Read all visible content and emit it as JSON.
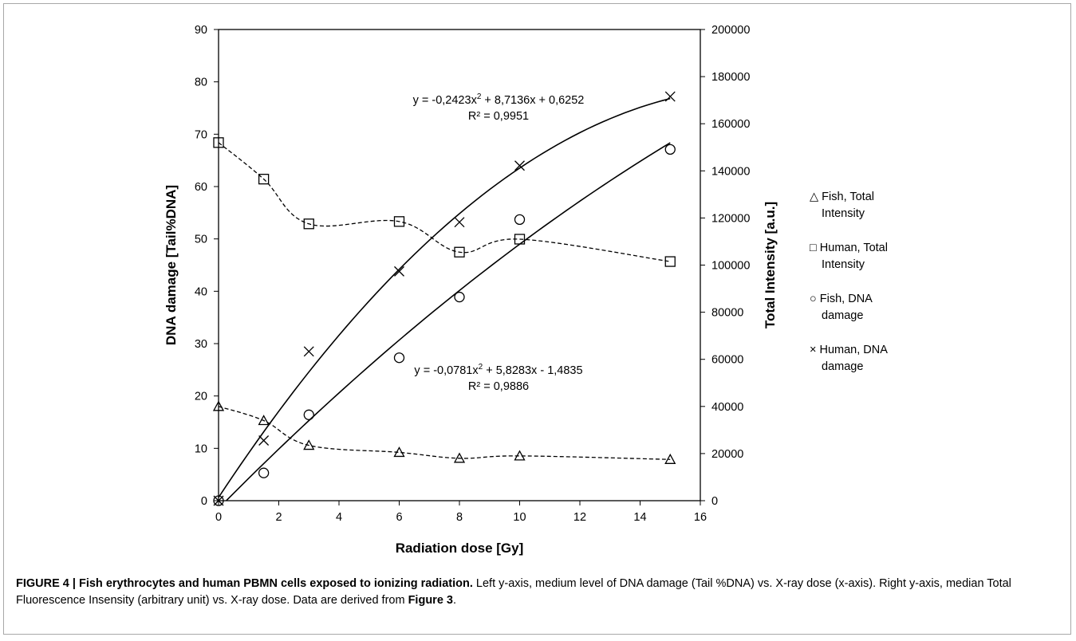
{
  "chart_data": {
    "type": "scatter",
    "xlabel": "Radiation dose [Gy]",
    "ylabel_left": "DNA damage [Tail%DNA]",
    "ylabel_right": "Total Intensity [a.u.]",
    "xlim": [
      0,
      16
    ],
    "ylim_left": [
      0,
      90
    ],
    "ylim_right": [
      0,
      200000
    ],
    "x_ticks": [
      "0",
      "2",
      "4",
      "6",
      "8",
      "10",
      "12",
      "14",
      "16"
    ],
    "y_left_ticks": [
      "0",
      "10",
      "20",
      "30",
      "40",
      "50",
      "60",
      "70",
      "80",
      "90"
    ],
    "y_right_ticks": [
      "0",
      "20000",
      "40000",
      "60000",
      "80000",
      "100000",
      "120000",
      "140000",
      "160000",
      "180000",
      "200000"
    ],
    "grid": false,
    "legend_position": "right",
    "series": [
      {
        "name": "Fish, Total Intensity",
        "legend": [
          "△ Fish, Total",
          "Intensity"
        ],
        "marker": "triangle",
        "axis": "right",
        "trend": "dashed",
        "x": [
          0,
          1.5,
          3,
          6,
          8,
          10,
          15
        ],
        "y": [
          40000,
          34000,
          23500,
          20500,
          18000,
          19000,
          17500
        ]
      },
      {
        "name": "Human, Total Intensity",
        "legend": [
          "□ Human, Total",
          "Intensity"
        ],
        "marker": "square",
        "axis": "right",
        "trend": "dashed",
        "x": [
          0,
          1.5,
          3,
          6,
          8,
          10,
          15
        ],
        "y": [
          152000,
          136500,
          117500,
          118500,
          105500,
          111000,
          101500
        ]
      },
      {
        "name": "Fish, DNA damage",
        "legend": [
          "○ Fish, DNA",
          "damage"
        ],
        "marker": "circle",
        "axis": "left",
        "trend": "solid",
        "x": [
          0,
          1.5,
          3,
          6,
          8,
          10,
          15
        ],
        "y": [
          0,
          5.3,
          16.4,
          27.3,
          38.9,
          53.7,
          67.1
        ]
      },
      {
        "name": "Human, DNA damage",
        "legend": [
          "× Human, DNA",
          "damage"
        ],
        "marker": "cross",
        "axis": "left",
        "trend": "solid",
        "x": [
          0,
          1.5,
          3,
          6,
          8,
          10,
          15
        ],
        "y": [
          0,
          11.5,
          28.5,
          43.8,
          53.2,
          64.0,
          77.2
        ]
      }
    ],
    "annotations": [
      {
        "line1_pre": "y = -0,2423x",
        "line1_post": " + 8,7136x + 0,6252",
        "line2": "R² = 0,9951",
        "coef": [
          -0.2423,
          8.7136,
          0.6252
        ]
      },
      {
        "line1_pre": "y = -0,0781x",
        "line1_post": " + 5,8283x - 1,4835",
        "line2": "R² = 0,9886",
        "coef": [
          -0.0781,
          5.8283,
          -1.4835
        ]
      }
    ]
  },
  "caption": {
    "bold": "FIGURE 4 | Fish erythrocytes and human PBMN cells exposed to ionizing radiation.",
    "text1": " Left y-axis, medium level of DNA damage (Tail %DNA) vs. X-ray dose (x-axis). Right y-axis, median Total Fluorescence Insensity (arbitrary unit) vs. X-ray dose. Data are derived from ",
    "bold2": "Figure 3",
    "text2": "."
  }
}
